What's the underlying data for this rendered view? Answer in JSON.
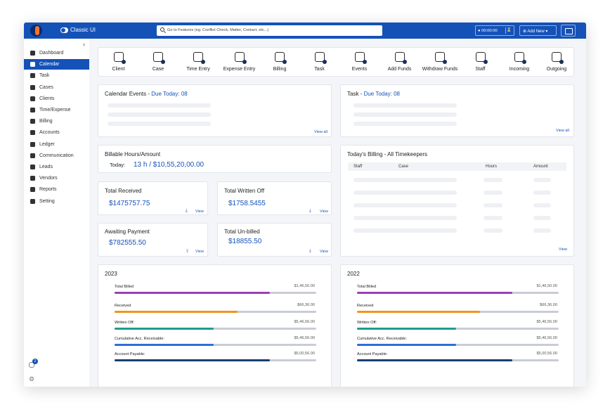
{
  "topbar": {
    "mode_label": "Classic UI",
    "search_placeholder": "Go to Features (eg. Conflict Check, Matter, Contact, etc...)",
    "timer": "00:00:00",
    "add_new": "Add New"
  },
  "sidebar": {
    "items": [
      {
        "label": "Dashboard",
        "icon": "dashboard-icon",
        "active": false
      },
      {
        "label": "Calendar",
        "icon": "calendar-icon",
        "active": true
      },
      {
        "label": "Task",
        "icon": "task-icon",
        "active": false
      },
      {
        "label": "Cases",
        "icon": "cases-icon",
        "active": false
      },
      {
        "label": "Clients",
        "icon": "clients-icon",
        "active": false
      },
      {
        "label": "Time/Expense",
        "icon": "time-expense-icon",
        "active": false
      },
      {
        "label": "Billing",
        "icon": "billing-icon",
        "active": false
      },
      {
        "label": "Accounts",
        "icon": "accounts-icon",
        "active": false
      },
      {
        "label": "Ledger",
        "icon": "ledger-icon",
        "active": false
      },
      {
        "label": "Communication",
        "icon": "communication-icon",
        "active": false
      },
      {
        "label": "Leads",
        "icon": "leads-icon",
        "active": false
      },
      {
        "label": "Vendors",
        "icon": "vendors-icon",
        "active": false
      },
      {
        "label": "Reports",
        "icon": "reports-icon",
        "active": false
      },
      {
        "label": "Setting",
        "icon": "setting-icon",
        "active": false
      }
    ],
    "notification_count": "2"
  },
  "quick_actions": [
    "Client",
    "Case",
    "Time Entry",
    "Expense Entry",
    "Billing",
    "Task",
    "Events",
    "Add Funds",
    "Withdraw Funds",
    "Staff",
    "Incoming",
    "Outgoing"
  ],
  "calendar_events": {
    "title": "Calendar Events - ",
    "due": "Due Today: 08",
    "view_all": "View all"
  },
  "task": {
    "title": "Task - ",
    "due": "Due Today: 08",
    "view_all": "View all"
  },
  "billable": {
    "title": "Billable Hours/Amount",
    "today_label": "Today:",
    "value": "13 h / $10,55,20,00.00"
  },
  "summary": {
    "total_received": {
      "label": "Total Received",
      "value": "$1475757.75",
      "view": "View"
    },
    "total_written_off": {
      "label": "Total Written Off",
      "value": "$1758.5455",
      "view": "View"
    },
    "awaiting_payment": {
      "label": "Awaiting Payment",
      "value": "$782555.50",
      "view": "View"
    },
    "total_unbilled": {
      "label": "Total Un-billed",
      "value": "$18855.50",
      "view": "View"
    }
  },
  "todays_billing": {
    "title": "Today's Billing - All Timekeepers",
    "columns": [
      "Staff",
      "Case",
      "Hours",
      "Amount"
    ],
    "view": "View"
  },
  "colors": {
    "primary": "#1452b8",
    "purple": "#9b3fb5",
    "orange": "#f2941c",
    "teal": "#1f9a8f",
    "blue": "#2f6fd6",
    "navy": "#173e73"
  },
  "yearly": [
    {
      "year": "2023",
      "rows": [
        {
          "label": "Total Billed",
          "value": "$1,46,50.00",
          "percent": 77,
          "color": "#9b3fb5"
        },
        {
          "label": "Received",
          "value": "$66,36.00",
          "percent": 61,
          "color": "#f2941c"
        },
        {
          "label": "Written Off:",
          "value": "$5,46,56.00",
          "percent": 49,
          "color": "#1f9a8f"
        },
        {
          "label": "Cumulative Acc. Receivable:",
          "value": "$5,46,56.00",
          "percent": 49,
          "color": "#2f6fd6"
        },
        {
          "label": "Account Payable:",
          "value": "$5,00,56.00",
          "percent": 77,
          "color": "#173e73"
        }
      ]
    },
    {
      "year": "2022",
      "rows": [
        {
          "label": "Total Billed",
          "value": "$1,46,50.00",
          "percent": 77,
          "color": "#9b3fb5"
        },
        {
          "label": "Received",
          "value": "$66,36.00",
          "percent": 61,
          "color": "#f2941c"
        },
        {
          "label": "Written Off:",
          "value": "$5,46,56.00",
          "percent": 49,
          "color": "#1f9a8f"
        },
        {
          "label": "Cumulative Acc. Receivable:",
          "value": "$5,46,56.00",
          "percent": 49,
          "color": "#2f6fd6"
        },
        {
          "label": "Account Payable:",
          "value": "$5,00,56.00",
          "percent": 77,
          "color": "#173e73"
        }
      ]
    }
  ]
}
